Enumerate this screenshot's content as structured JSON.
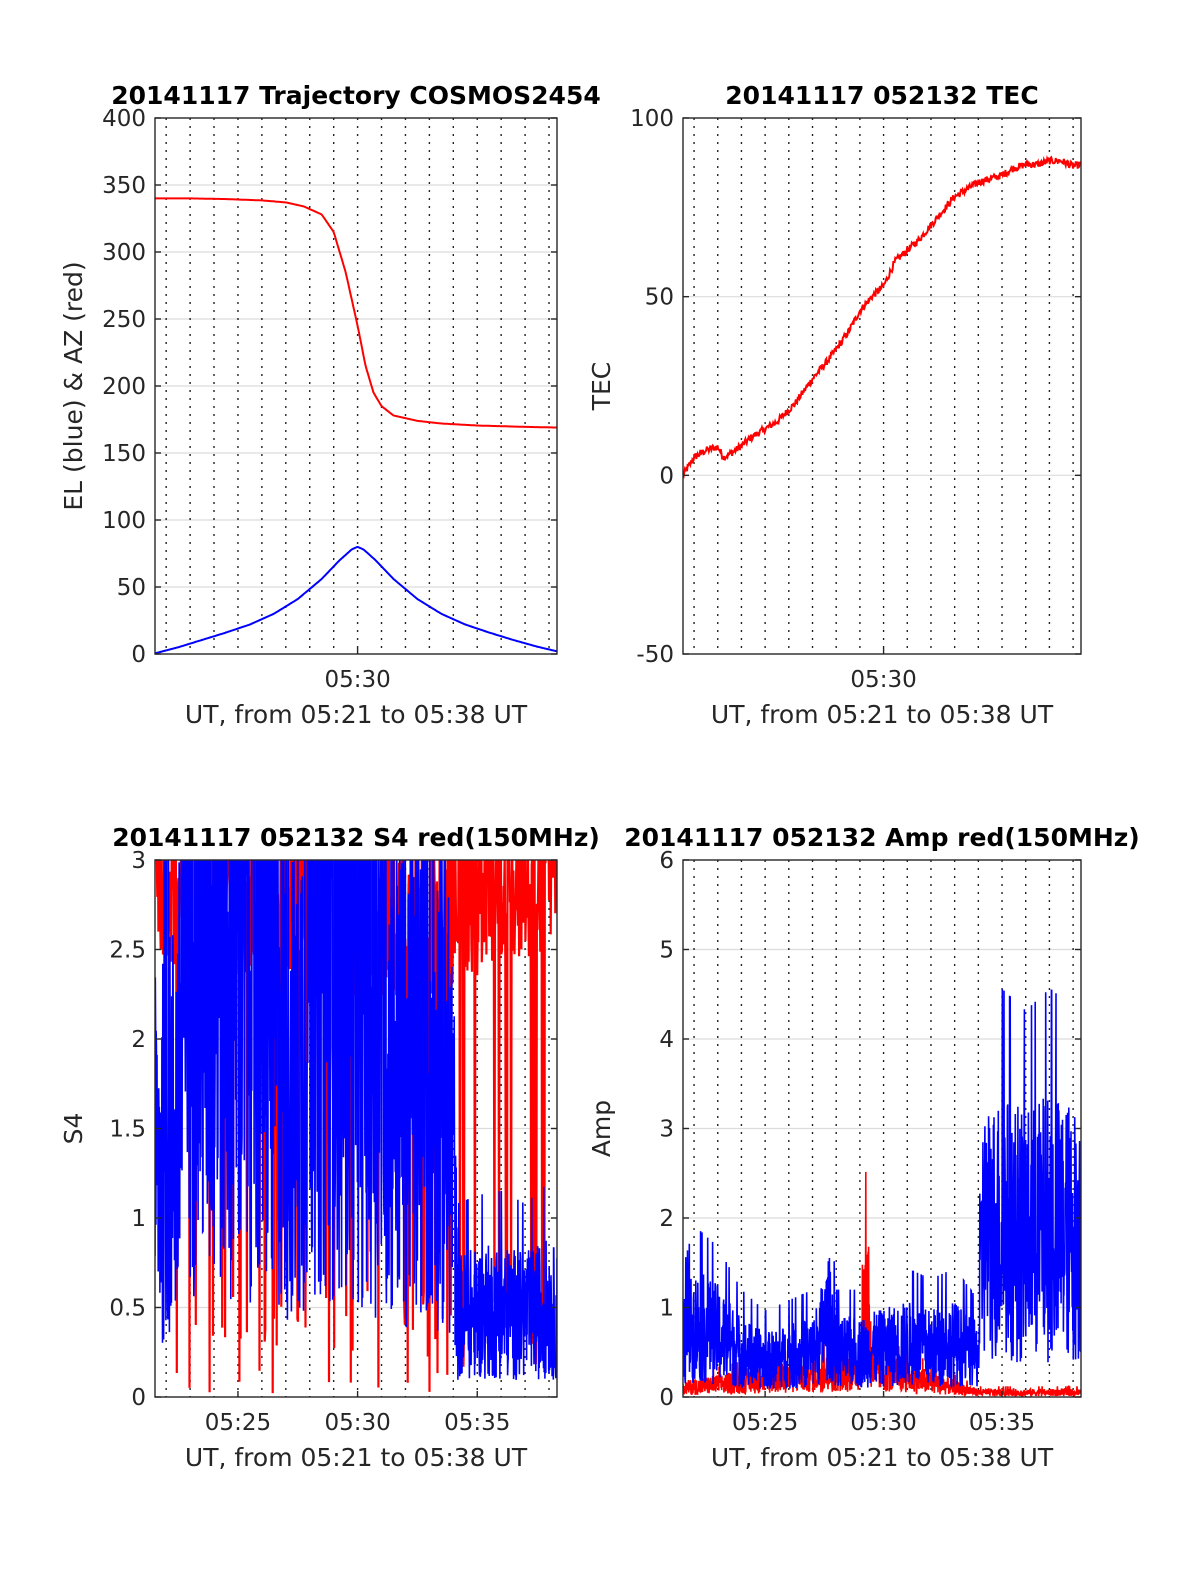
{
  "chart_data": [
    {
      "type": "line",
      "title": "20141117 Trajectory COSMOS2454",
      "xlabel": "UT, from 05:21 to 05:38 UT",
      "ylabel": "EL (blue) & AZ (red)",
      "xlim": [
        "05:21:32",
        "05:38:20"
      ],
      "ylim": [
        0,
        400
      ],
      "yticks": [
        0,
        50,
        100,
        150,
        200,
        250,
        300,
        350,
        400
      ],
      "xtick_labels": [
        {
          "value": "05:30:00",
          "label": "05:30"
        }
      ],
      "grid": {
        "y": true,
        "x": "dotted every minute"
      },
      "series": [
        {
          "color": "#ff0000",
          "points": [
            [
              "05:21:32",
              340
            ],
            [
              "05:23:00",
              340
            ],
            [
              "05:24:30",
              339.5
            ],
            [
              "05:26:00",
              338.5
            ],
            [
              "05:27:00",
              337
            ],
            [
              "05:27:45",
              334
            ],
            [
              "05:28:30",
              328
            ],
            [
              "05:29:00",
              315
            ],
            [
              "05:29:30",
              285
            ],
            [
              "05:30:00",
              245
            ],
            [
              "05:30:20",
              215
            ],
            [
              "05:30:40",
              195
            ],
            [
              "05:31:00",
              185
            ],
            [
              "05:31:30",
              178
            ],
            [
              "05:32:30",
              174
            ],
            [
              "05:33:30",
              172
            ],
            [
              "05:35:00",
              170.5
            ],
            [
              "05:37:00",
              169.5
            ],
            [
              "05:38:20",
              169
            ]
          ]
        },
        {
          "color": "#0000ff",
          "points": [
            [
              "05:21:32",
              0.5
            ],
            [
              "05:22:30",
              5
            ],
            [
              "05:23:30",
              10.5
            ],
            [
              "05:24:30",
              16
            ],
            [
              "05:25:30",
              22
            ],
            [
              "05:26:30",
              30
            ],
            [
              "05:27:30",
              41
            ],
            [
              "05:28:30",
              56
            ],
            [
              "05:29:15",
              70
            ],
            [
              "05:29:45",
              78
            ],
            [
              "05:30:00",
              80
            ],
            [
              "05:30:15",
              78
            ],
            [
              "05:30:45",
              70
            ],
            [
              "05:31:30",
              56
            ],
            [
              "05:32:30",
              41
            ],
            [
              "05:33:30",
              30
            ],
            [
              "05:34:30",
              22
            ],
            [
              "05:35:30",
              16
            ],
            [
              "05:36:30",
              10.5
            ],
            [
              "05:37:30",
              5.5
            ],
            [
              "05:38:20",
              2
            ]
          ]
        }
      ]
    },
    {
      "type": "line",
      "title": "20141117 052132 TEC",
      "xlabel": "UT, from 05:21 to 05:38 UT",
      "ylabel": "TEC",
      "xlim": [
        "05:21:32",
        "05:38:20"
      ],
      "ylim": [
        -50,
        100
      ],
      "yticks": [
        -50,
        0,
        50,
        100
      ],
      "xtick_labels": [
        {
          "value": "05:30:00",
          "label": "05:30"
        }
      ],
      "grid": {
        "y": true,
        "x": "dotted every minute"
      },
      "series": [
        {
          "color": "#ff0000",
          "noise": 1.0,
          "points": [
            [
              "05:21:32",
              0
            ],
            [
              "05:22:00",
              5
            ],
            [
              "05:22:30",
              7
            ],
            [
              "05:23:00",
              8
            ],
            [
              "05:23:15",
              5
            ],
            [
              "05:23:45",
              7
            ],
            [
              "05:24:30",
              11
            ],
            [
              "05:25:30",
              15
            ],
            [
              "05:26:15",
              20
            ],
            [
              "05:27:00",
              27
            ],
            [
              "05:27:45",
              33
            ],
            [
              "05:28:30",
              40
            ],
            [
              "05:29:00",
              46
            ],
            [
              "05:29:30",
              50
            ],
            [
              "05:30:00",
              53
            ],
            [
              "05:30:30",
              60
            ],
            [
              "05:31:00",
              63
            ],
            [
              "05:31:30",
              66
            ],
            [
              "05:32:00",
              70
            ],
            [
              "05:32:30",
              74
            ],
            [
              "05:33:00",
              78
            ],
            [
              "05:33:30",
              80
            ],
            [
              "05:34:00",
              82
            ],
            [
              "05:34:30",
              83
            ],
            [
              "05:35:00",
              84
            ],
            [
              "05:35:30",
              86
            ],
            [
              "05:36:00",
              87
            ],
            [
              "05:36:30",
              87
            ],
            [
              "05:37:00",
              88
            ],
            [
              "05:37:30",
              88
            ],
            [
              "05:38:00",
              86.5
            ],
            [
              "05:38:20",
              87
            ]
          ]
        }
      ]
    },
    {
      "type": "line",
      "title": "20141117 052132 S4 red(150MHz)",
      "xlabel": "UT, from 05:21 to 05:38 UT",
      "ylabel": "S4",
      "xlim": [
        "05:21:32",
        "05:38:20"
      ],
      "ylim": [
        0,
        3
      ],
      "yticks": [
        0,
        0.5,
        1,
        1.5,
        2,
        2.5,
        3
      ],
      "xtick_labels": [
        {
          "value": "05:25:00",
          "label": "05:25"
        },
        {
          "value": "05:30:00",
          "label": "05:30"
        },
        {
          "value": "05:35:00",
          "label": "05:35"
        }
      ],
      "grid": {
        "y": true,
        "x": "dotted every minute"
      },
      "series": [
        {
          "color": "#ff0000",
          "style": "spikes",
          "base_points": [
            [
              "05:21:32",
              2.9
            ],
            [
              "05:22:00",
              2.8
            ],
            [
              "05:24:00",
              2.9
            ],
            [
              "05:26:00",
              2.6
            ],
            [
              "05:28:00",
              2.8
            ],
            [
              "05:30:00",
              2.5
            ],
            [
              "05:32:00",
              2.6
            ],
            [
              "05:34:00",
              2.7
            ],
            [
              "05:36:00",
              2.8
            ],
            [
              "05:38:20",
              2.9
            ]
          ]
        },
        {
          "color": "#0000ff",
          "style": "noisy",
          "points": [
            [
              "05:21:32",
              1.3
            ],
            [
              "05:22:00",
              1.4
            ],
            [
              "05:22:30",
              1.6
            ],
            [
              "05:23:00",
              2.8
            ],
            [
              "05:24:00",
              2.6
            ],
            [
              "05:25:00",
              2.7
            ],
            [
              "05:26:00",
              2.5
            ],
            [
              "05:27:00",
              2.0
            ],
            [
              "05:27:30",
              1.6
            ],
            [
              "05:28:00",
              2.7
            ],
            [
              "05:29:00",
              2.6
            ],
            [
              "05:30:00",
              2.5
            ],
            [
              "05:31:00",
              2.1
            ],
            [
              "05:32:00",
              1.8
            ],
            [
              "05:33:00",
              1.9
            ],
            [
              "05:34:00",
              1.5
            ],
            [
              "05:34:10",
              0.45
            ],
            [
              "05:35:00",
              0.47
            ],
            [
              "05:36:00",
              0.48
            ],
            [
              "05:37:00",
              0.45
            ],
            [
              "05:38:00",
              0.5
            ],
            [
              "05:38:20",
              0.45
            ]
          ]
        }
      ]
    },
    {
      "type": "line",
      "title": "20141117 052132 Amp red(150MHz)",
      "xlabel": "UT, from 05:21 to 05:38 UT",
      "ylabel": "Amp",
      "xlim": [
        "05:21:32",
        "05:38:20"
      ],
      "ylim": [
        0,
        6
      ],
      "yticks": [
        0,
        1,
        2,
        3,
        4,
        5,
        6
      ],
      "xtick_labels": [
        {
          "value": "05:25:00",
          "label": "05:25"
        },
        {
          "value": "05:30:00",
          "label": "05:30"
        },
        {
          "value": "05:35:00",
          "label": "05:35"
        }
      ],
      "grid": {
        "y": true,
        "x": "dotted every minute"
      },
      "series": [
        {
          "color": "#ff0000",
          "style": "noisy",
          "points": [
            [
              "05:21:32",
              0.1
            ],
            [
              "05:29:00",
              0.3
            ],
            [
              "05:29:20",
              1.3
            ],
            [
              "05:29:30",
              0.3
            ],
            [
              "05:34:00",
              0.05
            ],
            [
              "05:38:20",
              0.05
            ]
          ]
        },
        {
          "color": "#0000ff",
          "style": "noisy",
          "points": [
            [
              "05:21:32",
              0.6
            ],
            [
              "05:22:00",
              0.8
            ],
            [
              "05:23:00",
              0.7
            ],
            [
              "05:24:00",
              0.5
            ],
            [
              "05:25:00",
              0.4
            ],
            [
              "05:26:00",
              0.45
            ],
            [
              "05:27:00",
              0.5
            ],
            [
              "05:27:45",
              0.9
            ],
            [
              "05:28:00",
              0.5
            ],
            [
              "05:29:00",
              0.5
            ],
            [
              "05:30:00",
              0.55
            ],
            [
              "05:31:00",
              0.6
            ],
            [
              "05:32:00",
              0.55
            ],
            [
              "05:33:00",
              0.6
            ],
            [
              "05:34:00",
              0.45
            ],
            [
              "05:34:10",
              1.8
            ],
            [
              "05:35:00",
              1.9
            ],
            [
              "05:36:00",
              1.8
            ],
            [
              "05:37:00",
              1.9
            ],
            [
              "05:38:20",
              1.8
            ]
          ]
        }
      ]
    }
  ]
}
